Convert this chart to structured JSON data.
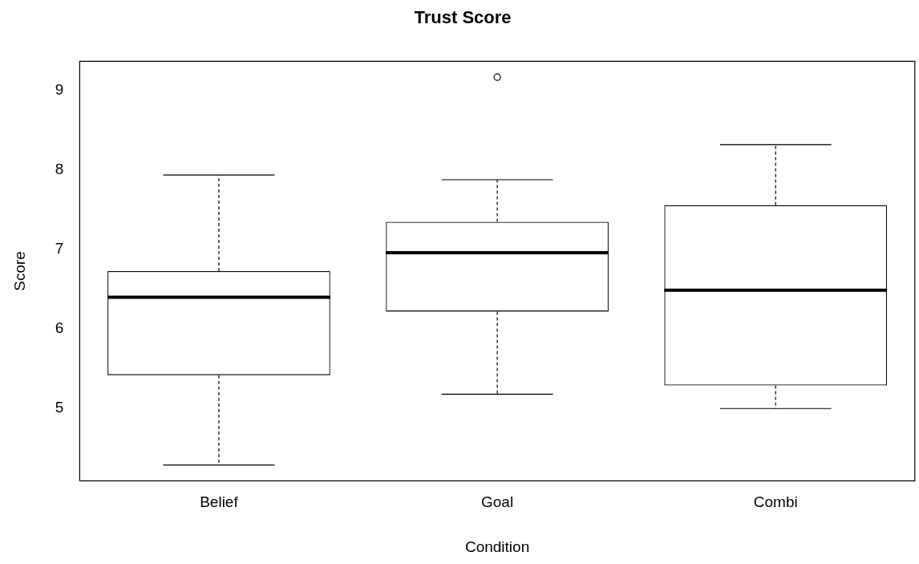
{
  "chart_data": {
    "type": "box",
    "title": "Trust Score",
    "xlabel": "Condition",
    "ylabel": "Score",
    "categories": [
      "Belief",
      "Goal",
      "Combi"
    ],
    "boxes": [
      {
        "low": 4.29,
        "q1": 5.42,
        "median": 6.4,
        "q3": 6.73,
        "high": 7.94
      },
      {
        "low": 5.18,
        "q1": 6.22,
        "median": 6.96,
        "q3": 7.35,
        "high": 7.88,
        "outliers": [
          9.17
        ]
      },
      {
        "low": 5.0,
        "q1": 5.29,
        "median": 6.49,
        "q3": 7.56,
        "high": 8.32
      }
    ],
    "ylim": [
      4.09,
      9.37
    ],
    "yticks": [
      5,
      6,
      7,
      8,
      9
    ]
  }
}
